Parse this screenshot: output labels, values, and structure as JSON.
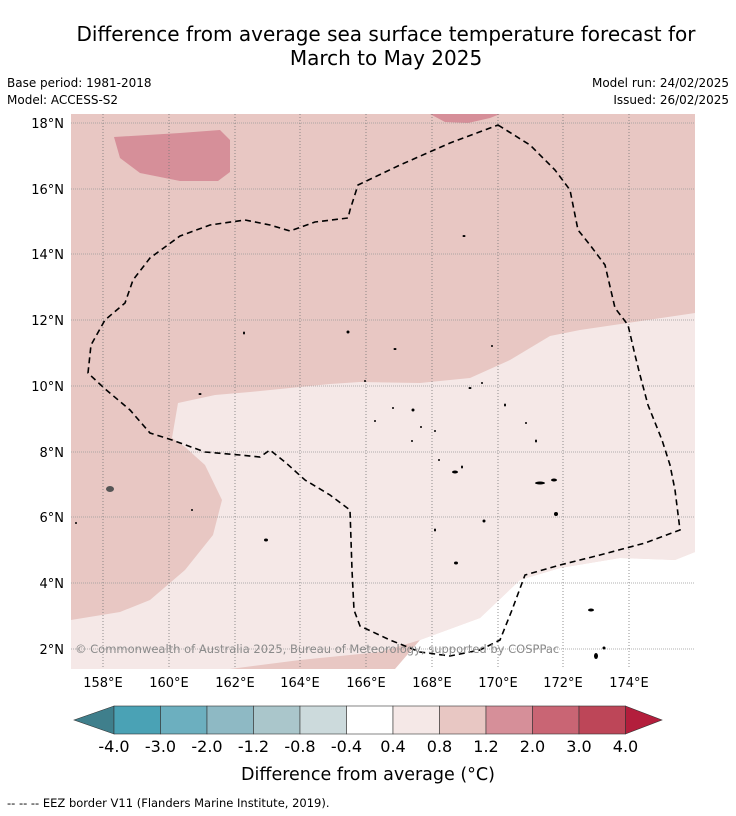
{
  "title_line1": "Difference from average sea surface temperature forecast for",
  "title_line2": "March to May 2025",
  "meta": {
    "base_period": "Base period: 1981-2018",
    "model": "Model: ACCESS-S2",
    "model_run": "Model run: 24/02/2025",
    "issued": "Issued: 26/02/2025"
  },
  "map": {
    "lat_labels": [
      "18°N",
      "16°N",
      "14°N",
      "12°N",
      "10°N",
      "8°N",
      "6°N",
      "4°N",
      "2°N"
    ],
    "lon_labels": [
      "158°E",
      "160°E",
      "162°E",
      "164°E",
      "166°E",
      "168°E",
      "170°E",
      "172°E",
      "174°E"
    ],
    "copyright": "© Commonwealth of Australia 2025, Bureau of Meteorology, supported by COSPPac"
  },
  "colorbar": {
    "tick_labels": [
      "-4.0",
      "-3.0",
      "-2.0",
      "-1.2",
      "-0.8",
      "-0.4",
      "0.4",
      "0.8",
      "1.2",
      "2.0",
      "3.0",
      "4.0"
    ],
    "colors": [
      "#3f7f8c",
      "#4aa2b5",
      "#6cafbf",
      "#8eb9c4",
      "#aac6cb",
      "#ccdadc",
      "#ffffff",
      "#f5e8e7",
      "#e8c7c3",
      "#d68f99",
      "#c96574",
      "#bd4658",
      "#b31e3c"
    ],
    "label": "Difference from average (°C)"
  },
  "legend": {
    "symbol": "-- -- --",
    "text": "EEZ border V11 (Flanders Marine Institute, 2019)."
  }
}
